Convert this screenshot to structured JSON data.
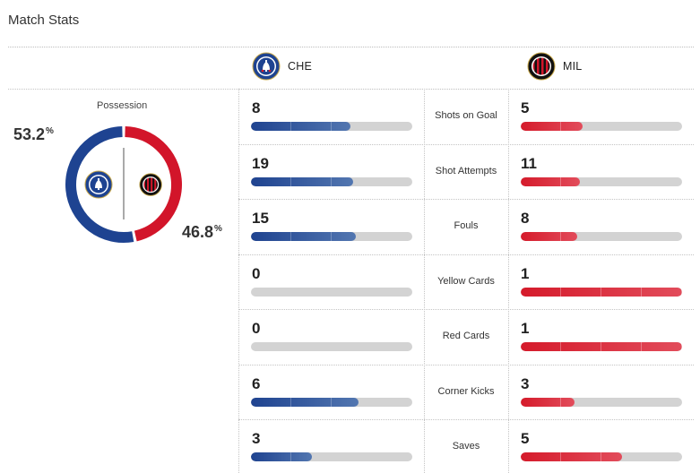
{
  "title": "Match Stats",
  "teams": {
    "home": {
      "abbr": "CHE",
      "color": "#1e4391",
      "logo_icon": "chelsea-crest-icon"
    },
    "away": {
      "abbr": "MIL",
      "color": "#d2152a",
      "logo_icon": "ac-milan-crest-icon"
    }
  },
  "possession": {
    "label": "Possession",
    "home_pct": 53.2,
    "away_pct": 46.8,
    "home_text": "53.2",
    "away_text": "46.8",
    "unit": "%"
  },
  "stats": [
    {
      "label": "Shots on Goal",
      "home": "8",
      "away": "5"
    },
    {
      "label": "Shot Attempts",
      "home": "19",
      "away": "11"
    },
    {
      "label": "Fouls",
      "home": "15",
      "away": "8"
    },
    {
      "label": "Yellow Cards",
      "home": "0",
      "away": "1"
    },
    {
      "label": "Red Cards",
      "home": "0",
      "away": "1"
    },
    {
      "label": "Corner Kicks",
      "home": "6",
      "away": "3"
    },
    {
      "label": "Saves",
      "home": "3",
      "away": "5"
    }
  ],
  "colors": {
    "bar_empty": "#d3d3d3",
    "divider": "#c4c4c4"
  }
}
